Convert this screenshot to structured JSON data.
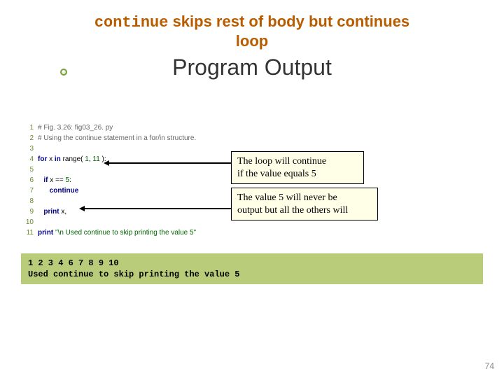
{
  "title": {
    "prefix_mono": "continue",
    "rest_line1": " skips rest of body but continues",
    "line2": "loop"
  },
  "subtitle": "Program Output",
  "code": {
    "lines": [
      {
        "n": "1",
        "segments": [
          {
            "t": "# Fig. 3.26: fig03_26. py",
            "c": "comment"
          }
        ]
      },
      {
        "n": "2",
        "segments": [
          {
            "t": "# Using the continue statement in a for/in structure.",
            "c": "comment"
          }
        ]
      },
      {
        "n": "3",
        "segments": []
      },
      {
        "n": "4",
        "segments": [
          {
            "t": "for ",
            "c": "kw"
          },
          {
            "t": "x ",
            "c": "ident"
          },
          {
            "t": "in ",
            "c": "kw"
          },
          {
            "t": "range( ",
            "c": "ident"
          },
          {
            "t": "1",
            "c": "num"
          },
          {
            "t": ", ",
            "c": "ident"
          },
          {
            "t": "11 ",
            "c": "num"
          },
          {
            "t": "):",
            "c": "ident"
          }
        ]
      },
      {
        "n": "5",
        "segments": []
      },
      {
        "n": "6",
        "segments": [
          {
            "t": "   if ",
            "c": "kw"
          },
          {
            "t": "x == ",
            "c": "ident"
          },
          {
            "t": "5",
            "c": "num"
          },
          {
            "t": ":",
            "c": "ident"
          }
        ]
      },
      {
        "n": "7",
        "segments": [
          {
            "t": "      continue",
            "c": "kw"
          }
        ]
      },
      {
        "n": "8",
        "segments": []
      },
      {
        "n": "9",
        "segments": [
          {
            "t": "   print ",
            "c": "kw"
          },
          {
            "t": "x,",
            "c": "ident"
          }
        ]
      },
      {
        "n": "10",
        "segments": []
      },
      {
        "n": "11",
        "segments": [
          {
            "t": "print ",
            "c": "kw"
          },
          {
            "t": "\"\\n Used continue to skip printing the value 5\"",
            "c": "str"
          }
        ]
      }
    ]
  },
  "annotations": {
    "a1": {
      "line1": "The loop will continue",
      "line2": "if the value equals 5"
    },
    "a2": {
      "line1": "The value 5 will never be",
      "line2": "output but all the others will"
    }
  },
  "output": {
    "line1": "1 2 3 4 6 7 8 9 10",
    "line2": "Used continue to skip printing the value 5"
  },
  "page_number": "74",
  "colors": {
    "title_color": "#b85c00",
    "output_bg": "#b8cc7a",
    "linenum_color": "#6a8a2a",
    "annot_bg": "#ffffe8"
  }
}
